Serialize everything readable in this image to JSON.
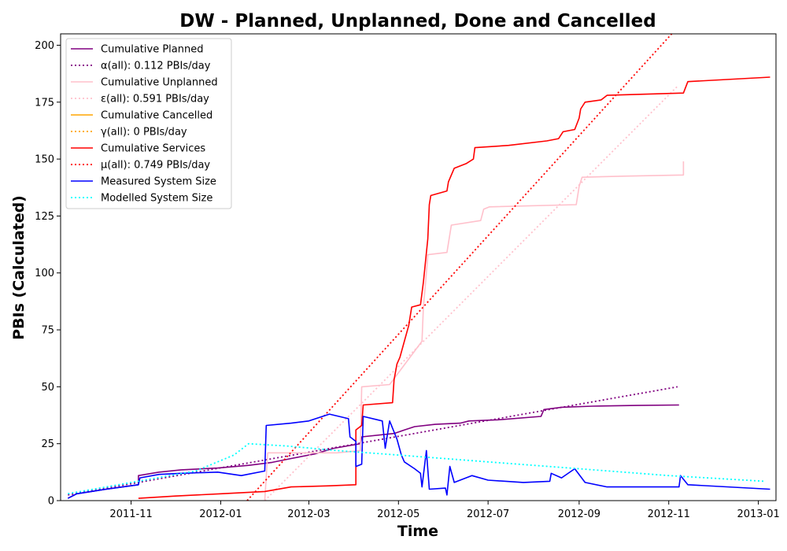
{
  "chart_data": {
    "type": "line",
    "title": "DW - Planned, Unplanned, Done  and Cancelled",
    "xlabel": "Time",
    "ylabel": "PBIs (Calculated)",
    "xlim": [
      "2011-09-14",
      "2013-01-13"
    ],
    "ylim": [
      0,
      205
    ],
    "x_ticks": [
      "2011-11",
      "2012-01",
      "2012-03",
      "2012-05",
      "2012-07",
      "2012-09",
      "2012-11",
      "2013-01"
    ],
    "y_ticks": [
      0,
      25,
      50,
      75,
      100,
      125,
      150,
      175,
      200
    ],
    "grid": false,
    "legend_position": "top-left",
    "series": [
      {
        "name": "Cumulative Planned",
        "color": "#800080",
        "style": "solid",
        "points": [
          [
            "2011-09-19",
            1
          ],
          [
            "2011-09-25",
            3
          ],
          [
            "2011-10-15",
            5
          ],
          [
            "2011-11-06",
            7
          ],
          [
            "2011-11-06",
            11
          ],
          [
            "2011-11-20",
            12.5
          ],
          [
            "2011-12-05",
            13.5
          ],
          [
            "2011-12-30",
            14.3
          ],
          [
            "2012-01-20",
            15.5
          ],
          [
            "2012-02-05",
            16.8
          ],
          [
            "2012-02-18",
            18.5
          ],
          [
            "2012-03-05",
            20.5
          ],
          [
            "2012-03-18",
            23
          ],
          [
            "2012-04-05",
            25
          ],
          [
            "2012-04-06",
            28
          ],
          [
            "2012-04-28",
            29.5
          ],
          [
            "2012-05-05",
            31
          ],
          [
            "2012-05-12",
            32.5
          ],
          [
            "2012-05-26",
            33.5
          ],
          [
            "2012-06-12",
            34
          ],
          [
            "2012-06-18",
            35
          ],
          [
            "2012-07-08",
            35.5
          ],
          [
            "2012-08-06",
            37
          ],
          [
            "2012-08-08",
            40
          ],
          [
            "2012-08-20",
            41
          ],
          [
            "2012-09-10",
            41.5
          ],
          [
            "2012-10-10",
            41.8
          ],
          [
            "2012-11-08",
            42
          ]
        ]
      },
      {
        "name": "α(all): 0.112 PBIs/day",
        "color": "#800080",
        "style": "dotted",
        "points": [
          [
            "2011-09-19",
            2.5
          ],
          [
            "2012-11-07",
            50
          ]
        ]
      },
      {
        "name": "Cumulative Unplanned",
        "color": "#ffc0cb",
        "style": "solid",
        "points": [
          [
            "2012-01-31",
            0
          ],
          [
            "2012-02-02",
            21
          ],
          [
            "2012-03-20",
            21
          ],
          [
            "2012-04-05",
            22
          ],
          [
            "2012-04-06",
            50
          ],
          [
            "2012-04-25",
            51
          ],
          [
            "2012-05-17",
            70
          ],
          [
            "2012-05-18",
            85
          ],
          [
            "2012-05-20",
            100
          ],
          [
            "2012-05-21",
            108
          ],
          [
            "2012-06-03",
            109
          ],
          [
            "2012-06-06",
            121
          ],
          [
            "2012-06-26",
            123
          ],
          [
            "2012-06-28",
            128
          ],
          [
            "2012-07-02",
            129
          ],
          [
            "2012-08-30",
            130
          ],
          [
            "2012-09-01",
            138
          ],
          [
            "2012-09-03",
            142
          ],
          [
            "2012-10-01",
            142.5
          ],
          [
            "2012-11-11",
            143
          ],
          [
            "2012-11-11",
            149
          ]
        ]
      },
      {
        "name": "ε(all): 0.591 PBIs/day",
        "color": "#ffc0cb",
        "style": "dotted",
        "points": [
          [
            "2012-01-31",
            0
          ],
          [
            "2012-11-07",
            182
          ]
        ]
      },
      {
        "name": "Cumulative Cancelled",
        "color": "#ffa500",
        "style": "solid",
        "points": []
      },
      {
        "name": "γ(all): 0 PBIs/day",
        "color": "#ffa500",
        "style": "dotted",
        "points": []
      },
      {
        "name": "Cumulative Services",
        "color": "#ff0000",
        "style": "solid",
        "points": [
          [
            "2011-11-06",
            1
          ],
          [
            "2011-12-01",
            2
          ],
          [
            "2012-01-01",
            3
          ],
          [
            "2012-01-31",
            4
          ],
          [
            "2012-02-18",
            6
          ],
          [
            "2012-03-15",
            6.5
          ],
          [
            "2012-04-02",
            7
          ],
          [
            "2012-04-02",
            31
          ],
          [
            "2012-04-06",
            33
          ],
          [
            "2012-04-07",
            42
          ],
          [
            "2012-04-27",
            43
          ],
          [
            "2012-04-28",
            53
          ],
          [
            "2012-04-30",
            60
          ],
          [
            "2012-05-02",
            63
          ],
          [
            "2012-05-05",
            70
          ],
          [
            "2012-05-08",
            77
          ],
          [
            "2012-05-10",
            85
          ],
          [
            "2012-05-16",
            86
          ],
          [
            "2012-05-18",
            96
          ],
          [
            "2012-05-21",
            115
          ],
          [
            "2012-05-22",
            130
          ],
          [
            "2012-05-23",
            134
          ],
          [
            "2012-06-03",
            136
          ],
          [
            "2012-06-04",
            140
          ],
          [
            "2012-06-08",
            146
          ],
          [
            "2012-06-16",
            148
          ],
          [
            "2012-06-21",
            150
          ],
          [
            "2012-06-22",
            155
          ],
          [
            "2012-07-15",
            156
          ],
          [
            "2012-08-10",
            158
          ],
          [
            "2012-08-18",
            159
          ],
          [
            "2012-08-21",
            162
          ],
          [
            "2012-08-29",
            163
          ],
          [
            "2012-09-01",
            168
          ],
          [
            "2012-09-02",
            172
          ],
          [
            "2012-09-05",
            175
          ],
          [
            "2012-09-16",
            176
          ],
          [
            "2012-09-20",
            178
          ],
          [
            "2012-11-11",
            179
          ],
          [
            "2012-11-14",
            184
          ],
          [
            "2013-01-09",
            186
          ]
        ]
      },
      {
        "name": "μ(all): 0.749 PBIs/day",
        "color": "#ff0000",
        "style": "dotted",
        "points": [
          [
            "2012-01-19",
            0
          ],
          [
            "2012-11-03",
            205
          ]
        ]
      },
      {
        "name": "Measured System Size",
        "color": "#0000ff",
        "style": "solid",
        "points": [
          [
            "2011-09-19",
            1
          ],
          [
            "2011-09-25",
            3
          ],
          [
            "2011-10-15",
            5
          ],
          [
            "2011-11-06",
            7
          ],
          [
            "2011-11-07",
            10
          ],
          [
            "2011-11-20",
            11.5
          ],
          [
            "2011-12-05",
            12
          ],
          [
            "2011-12-30",
            12.5
          ],
          [
            "2012-01-15",
            11
          ],
          [
            "2012-01-31",
            13
          ],
          [
            "2012-02-01",
            33
          ],
          [
            "2012-02-18",
            34
          ],
          [
            "2012-03-01",
            35
          ],
          [
            "2012-03-15",
            38
          ],
          [
            "2012-03-28",
            36
          ],
          [
            "2012-03-29",
            28
          ],
          [
            "2012-04-02",
            26
          ],
          [
            "2012-04-02",
            15
          ],
          [
            "2012-04-06",
            16
          ],
          [
            "2012-04-07",
            37
          ],
          [
            "2012-04-20",
            35
          ],
          [
            "2012-04-22",
            23
          ],
          [
            "2012-04-25",
            35
          ],
          [
            "2012-04-30",
            27
          ],
          [
            "2012-05-03",
            20
          ],
          [
            "2012-05-05",
            17
          ],
          [
            "2012-05-12",
            14
          ],
          [
            "2012-05-16",
            12
          ],
          [
            "2012-05-17",
            6
          ],
          [
            "2012-05-20",
            22
          ],
          [
            "2012-05-22",
            5
          ],
          [
            "2012-06-02",
            5.5
          ],
          [
            "2012-06-03",
            2.5
          ],
          [
            "2012-06-05",
            15
          ],
          [
            "2012-06-08",
            8
          ],
          [
            "2012-06-20",
            11
          ],
          [
            "2012-07-01",
            9
          ],
          [
            "2012-07-25",
            8
          ],
          [
            "2012-08-12",
            8.5
          ],
          [
            "2012-08-13",
            12
          ],
          [
            "2012-08-20",
            10
          ],
          [
            "2012-08-29",
            14
          ],
          [
            "2012-09-05",
            8
          ],
          [
            "2012-09-20",
            6
          ],
          [
            "2012-11-08",
            6
          ],
          [
            "2012-11-09",
            11
          ],
          [
            "2012-11-14",
            7
          ],
          [
            "2013-01-09",
            5
          ]
        ]
      },
      {
        "name": "Modelled System Size",
        "color": "#00ffff",
        "style": "dotted",
        "points": [
          [
            "2011-09-19",
            3
          ],
          [
            "2011-12-15",
            13
          ],
          [
            "2012-01-10",
            20
          ],
          [
            "2012-01-20",
            25
          ],
          [
            "2012-02-15",
            24
          ],
          [
            "2012-03-20",
            22
          ],
          [
            "2012-05-01",
            20
          ],
          [
            "2012-07-01",
            17
          ],
          [
            "2012-09-01",
            14
          ],
          [
            "2012-11-01",
            11
          ],
          [
            "2013-01-05",
            8.5
          ]
        ]
      }
    ]
  }
}
